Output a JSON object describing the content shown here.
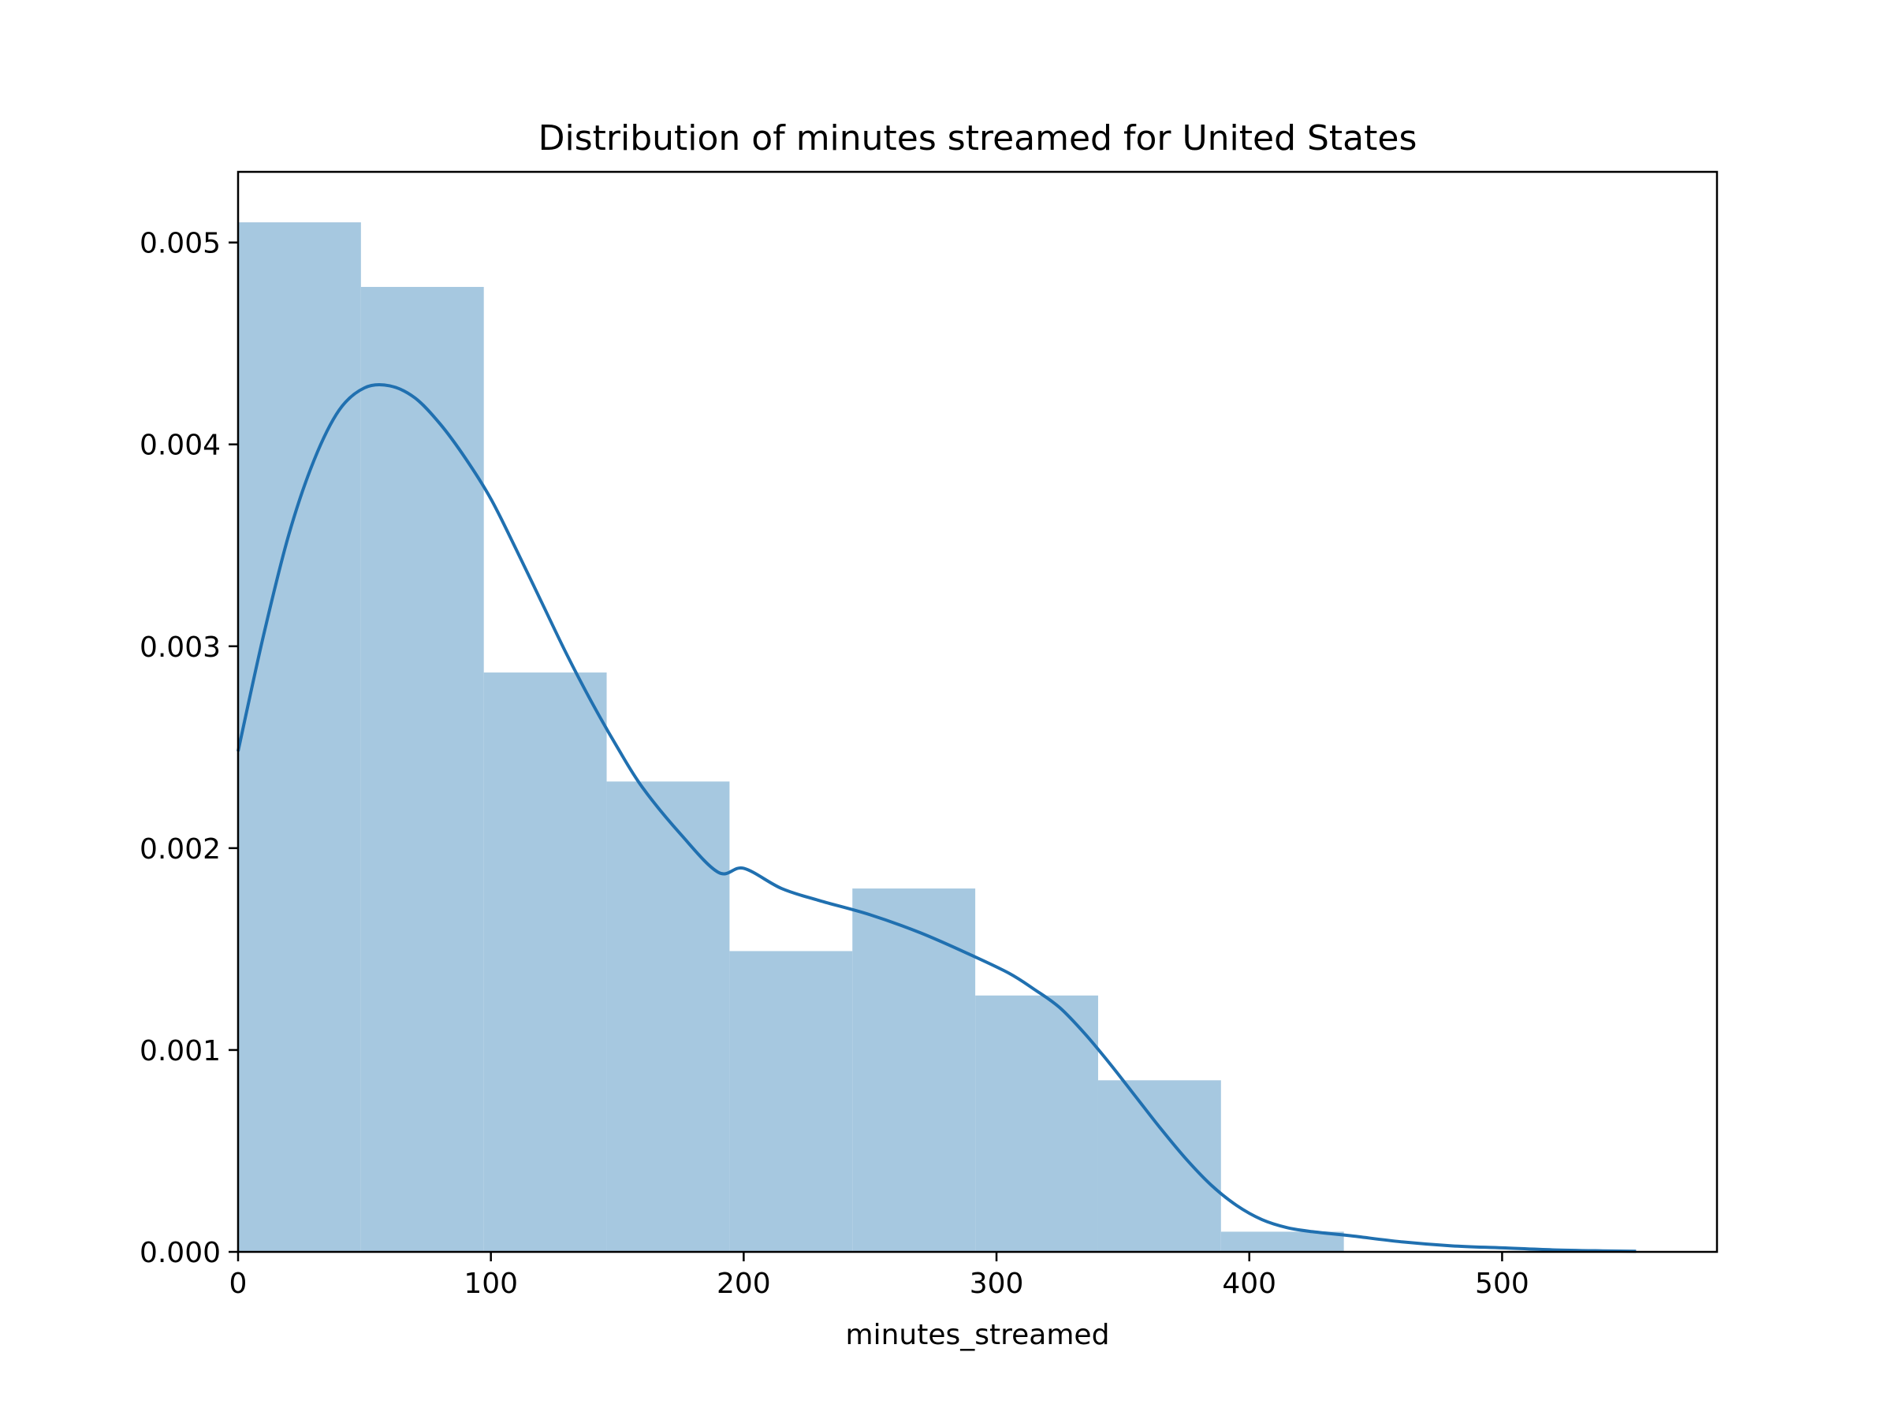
{
  "chart_data": {
    "type": "histogram",
    "title": "Distribution of minutes streamed for United States",
    "xlabel": "minutes_streamed",
    "ylabel": "",
    "xlim": [
      0,
      585
    ],
    "ylim": [
      0,
      0.00535
    ],
    "xticks": [
      0,
      100,
      200,
      300,
      400,
      500
    ],
    "xtick_labels": [
      "0",
      "100",
      "200",
      "300",
      "400",
      "500"
    ],
    "yticks": [
      0.0,
      0.001,
      0.002,
      0.003,
      0.004,
      0.005
    ],
    "ytick_labels": [
      "0.000",
      "0.001",
      "0.002",
      "0.003",
      "0.004",
      "0.005"
    ],
    "grid": false,
    "colors": {
      "bar": "#a6c8e0",
      "line": "#2070b0",
      "axis": "#000000"
    },
    "bins": [
      {
        "x0": 0,
        "x1": 48.6,
        "density": 0.0051
      },
      {
        "x0": 48.6,
        "x1": 97.2,
        "density": 0.00478
      },
      {
        "x0": 97.2,
        "x1": 145.8,
        "density": 0.00287
      },
      {
        "x0": 145.8,
        "x1": 194.4,
        "density": 0.00233
      },
      {
        "x0": 194.4,
        "x1": 243.0,
        "density": 0.00149
      },
      {
        "x0": 243.0,
        "x1": 291.6,
        "density": 0.0018
      },
      {
        "x0": 291.6,
        "x1": 340.2,
        "density": 0.00127
      },
      {
        "x0": 340.2,
        "x1": 388.8,
        "density": 0.00085
      },
      {
        "x0": 388.8,
        "x1": 437.4,
        "density": 0.0001
      }
    ],
    "kde": {
      "x": [
        0,
        10,
        20,
        30,
        40,
        50,
        60,
        70,
        80,
        90,
        100,
        110,
        120,
        130,
        140,
        150,
        160,
        175,
        190,
        200,
        215,
        230,
        250,
        270,
        290,
        305,
        315,
        325,
        335,
        345,
        355,
        365,
        375,
        385,
        395,
        405,
        415,
        425,
        440,
        460,
        480,
        500,
        520,
        540,
        553
      ],
      "y": [
        0.00248,
        0.00305,
        0.00355,
        0.00392,
        0.00417,
        0.00428,
        0.00429,
        0.00423,
        0.0041,
        0.00393,
        0.00373,
        0.00348,
        0.00322,
        0.00296,
        0.00272,
        0.0025,
        0.0023,
        0.00207,
        0.00188,
        0.0019,
        0.0018,
        0.00174,
        0.00167,
        0.00158,
        0.00147,
        0.00138,
        0.0013,
        0.00121,
        0.00108,
        0.00093,
        0.00077,
        0.00061,
        0.00046,
        0.00033,
        0.00023,
        0.00016,
        0.00012,
        0.0001,
        8e-05,
        5e-05,
        3e-05,
        2e-05,
        1e-05,
        5e-06,
        3e-06
      ]
    }
  }
}
